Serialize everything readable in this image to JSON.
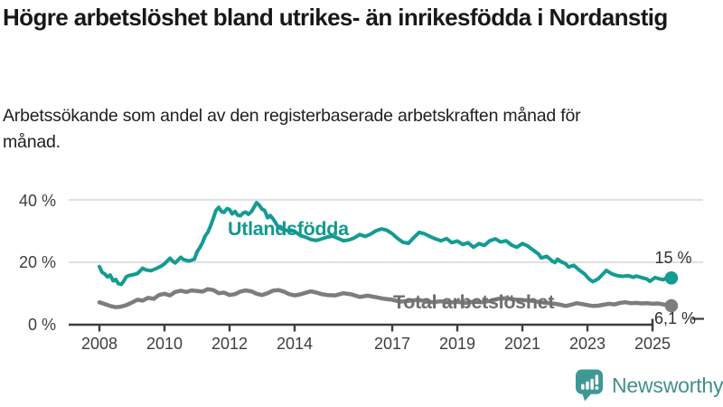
{
  "title": "Högre arbetslöshet bland utrikes- än inrikesfödda i Nordanstig",
  "subtitle": "Arbetssökande som andel av den registerbaserade arbetskraften månad för månad.",
  "chart_data": {
    "type": "line",
    "unit": "%",
    "x_range": [
      2008,
      2025.58
    ],
    "y_range": [
      0,
      40
    ],
    "grid_on": true,
    "grid_color": "#e0e0e0",
    "axis_color": "#3e3e3e",
    "x_ticks": [
      "2008",
      "2010",
      "2012",
      "2014",
      "2017",
      "2019",
      "2021",
      "2023",
      "2025"
    ],
    "y_ticks": [
      {
        "value": 40,
        "label": "40 %"
      },
      {
        "value": 20,
        "label": "20 %"
      },
      {
        "value": 0,
        "label": "0 %"
      }
    ],
    "series": [
      {
        "name": "Utlandsfödda",
        "color": "#149b94",
        "end_label": "15 %",
        "end_value": 15,
        "points": [
          [
            2008,
            18.6
          ],
          [
            2008.08,
            16.8
          ],
          [
            2008.17,
            16.2
          ],
          [
            2008.25,
            15.3
          ],
          [
            2008.33,
            15.9
          ],
          [
            2008.42,
            14.1
          ],
          [
            2008.5,
            14.5
          ],
          [
            2008.58,
            13.2
          ],
          [
            2008.67,
            12.9
          ],
          [
            2008.75,
            14
          ],
          [
            2008.83,
            15.4
          ],
          [
            2008.92,
            15.8
          ],
          [
            2009,
            15.9
          ],
          [
            2009.17,
            16.4
          ],
          [
            2009.33,
            18.1
          ],
          [
            2009.42,
            17.6
          ],
          [
            2009.58,
            17.3
          ],
          [
            2009.75,
            18
          ],
          [
            2009.92,
            18.9
          ],
          [
            2010,
            19.5
          ],
          [
            2010.17,
            21.3
          ],
          [
            2010.25,
            20.4
          ],
          [
            2010.33,
            19.8
          ],
          [
            2010.5,
            21.6
          ],
          [
            2010.58,
            20.9
          ],
          [
            2010.75,
            20.4
          ],
          [
            2010.92,
            21
          ],
          [
            2011,
            23.3
          ],
          [
            2011.08,
            24.6
          ],
          [
            2011.17,
            26.3
          ],
          [
            2011.25,
            28.4
          ],
          [
            2011.33,
            29.6
          ],
          [
            2011.42,
            31.7
          ],
          [
            2011.5,
            34.1
          ],
          [
            2011.58,
            36.6
          ],
          [
            2011.67,
            37.6
          ],
          [
            2011.75,
            36.3
          ],
          [
            2011.83,
            36
          ],
          [
            2011.92,
            37.2
          ],
          [
            2012,
            36.9
          ],
          [
            2012.08,
            35.5
          ],
          [
            2012.17,
            36.3
          ],
          [
            2012.25,
            35.1
          ],
          [
            2012.33,
            34.9
          ],
          [
            2012.42,
            35.8
          ],
          [
            2012.5,
            36.1
          ],
          [
            2012.58,
            35.4
          ],
          [
            2012.67,
            36.2
          ],
          [
            2012.75,
            37.6
          ],
          [
            2012.83,
            39.1
          ],
          [
            2012.92,
            38.2
          ],
          [
            2013,
            37
          ],
          [
            2013.08,
            36.6
          ],
          [
            2013.17,
            34.3
          ],
          [
            2013.25,
            35
          ],
          [
            2013.33,
            34
          ],
          [
            2013.42,
            32.6
          ],
          [
            2013.5,
            31.2
          ],
          [
            2013.67,
            30.4
          ],
          [
            2013.83,
            30.1
          ],
          [
            2014,
            29.9
          ],
          [
            2014.17,
            28.6
          ],
          [
            2014.33,
            28.1
          ],
          [
            2014.5,
            27.3
          ],
          [
            2014.67,
            27
          ],
          [
            2014.83,
            27.5
          ],
          [
            2015,
            28.1
          ],
          [
            2015.17,
            28.4
          ],
          [
            2015.33,
            27.7
          ],
          [
            2015.5,
            26.9
          ],
          [
            2015.67,
            27.2
          ],
          [
            2015.83,
            27.8
          ],
          [
            2016,
            28.9
          ],
          [
            2016.17,
            28.3
          ],
          [
            2016.33,
            29
          ],
          [
            2016.5,
            30.1
          ],
          [
            2016.67,
            30.7
          ],
          [
            2016.83,
            30.3
          ],
          [
            2017,
            29.2
          ],
          [
            2017.17,
            27.6
          ],
          [
            2017.33,
            26.4
          ],
          [
            2017.5,
            26.1
          ],
          [
            2017.67,
            28
          ],
          [
            2017.83,
            29.6
          ],
          [
            2018,
            29.1
          ],
          [
            2018.17,
            28.2
          ],
          [
            2018.33,
            27.5
          ],
          [
            2018.5,
            26.9
          ],
          [
            2018.67,
            27.6
          ],
          [
            2018.83,
            26.3
          ],
          [
            2019,
            26.8
          ],
          [
            2019.17,
            25.7
          ],
          [
            2019.33,
            26.3
          ],
          [
            2019.5,
            24.8
          ],
          [
            2019.67,
            26
          ],
          [
            2019.83,
            25.4
          ],
          [
            2020,
            26.9
          ],
          [
            2020.17,
            27.5
          ],
          [
            2020.33,
            26.5
          ],
          [
            2020.5,
            26.9
          ],
          [
            2020.67,
            25.5
          ],
          [
            2020.83,
            24.8
          ],
          [
            2021,
            26
          ],
          [
            2021.17,
            25.2
          ],
          [
            2021.33,
            23.9
          ],
          [
            2021.5,
            22.6
          ],
          [
            2021.58,
            21.4
          ],
          [
            2021.75,
            21.9
          ],
          [
            2021.92,
            20.4
          ],
          [
            2022,
            19.9
          ],
          [
            2022.08,
            21
          ],
          [
            2022.17,
            20.3
          ],
          [
            2022.33,
            19.5
          ],
          [
            2022.42,
            18.5
          ],
          [
            2022.58,
            19
          ],
          [
            2022.75,
            17.5
          ],
          [
            2022.92,
            16.2
          ],
          [
            2023,
            15.2
          ],
          [
            2023.08,
            14.4
          ],
          [
            2023.17,
            13.8
          ],
          [
            2023.33,
            14.7
          ],
          [
            2023.5,
            16.5
          ],
          [
            2023.58,
            17.4
          ],
          [
            2023.75,
            16.3
          ],
          [
            2023.92,
            15.7
          ],
          [
            2024.08,
            15.5
          ],
          [
            2024.25,
            15.7
          ],
          [
            2024.42,
            15.2
          ],
          [
            2024.5,
            15.6
          ],
          [
            2024.67,
            15.1
          ],
          [
            2024.83,
            14.6
          ],
          [
            2024.92,
            13.9
          ],
          [
            2025.08,
            15.1
          ],
          [
            2025.17,
            14.8
          ],
          [
            2025.33,
            14.4
          ],
          [
            2025.42,
            15
          ],
          [
            2025.58,
            15
          ]
        ]
      },
      {
        "name": "Total arbetslöshet",
        "color": "#7d7d80",
        "end_label": "6,1 %",
        "end_value": 6.1,
        "points": [
          [
            2008,
            7.2
          ],
          [
            2008.17,
            6.6
          ],
          [
            2008.33,
            6
          ],
          [
            2008.5,
            5.6
          ],
          [
            2008.67,
            5.8
          ],
          [
            2008.83,
            6.3
          ],
          [
            2009,
            7.1
          ],
          [
            2009.17,
            8
          ],
          [
            2009.33,
            7.7
          ],
          [
            2009.5,
            8.6
          ],
          [
            2009.67,
            8.3
          ],
          [
            2009.83,
            9.5
          ],
          [
            2010,
            9.9
          ],
          [
            2010.17,
            9.4
          ],
          [
            2010.33,
            10.5
          ],
          [
            2010.5,
            10.9
          ],
          [
            2010.67,
            10.5
          ],
          [
            2010.83,
            11
          ],
          [
            2011,
            10.8
          ],
          [
            2011.17,
            10.6
          ],
          [
            2011.33,
            11.4
          ],
          [
            2011.5,
            11.1
          ],
          [
            2011.67,
            10.1
          ],
          [
            2011.83,
            10.3
          ],
          [
            2012,
            9.5
          ],
          [
            2012.17,
            9.8
          ],
          [
            2012.33,
            10.6
          ],
          [
            2012.5,
            11
          ],
          [
            2012.67,
            10.7
          ],
          [
            2012.83,
            9.9
          ],
          [
            2013,
            9.5
          ],
          [
            2013.17,
            10.1
          ],
          [
            2013.33,
            10.9
          ],
          [
            2013.5,
            11.1
          ],
          [
            2013.67,
            10.6
          ],
          [
            2013.83,
            9.8
          ],
          [
            2014,
            9.4
          ],
          [
            2014.17,
            9.7
          ],
          [
            2014.33,
            10.2
          ],
          [
            2014.5,
            10.7
          ],
          [
            2014.67,
            10.3
          ],
          [
            2014.83,
            9.8
          ],
          [
            2015,
            9.5
          ],
          [
            2015.25,
            9.4
          ],
          [
            2015.5,
            10.1
          ],
          [
            2015.75,
            9.7
          ],
          [
            2016,
            8.9
          ],
          [
            2016.25,
            9.3
          ],
          [
            2016.5,
            8.8
          ],
          [
            2016.75,
            8.3
          ],
          [
            2017,
            8
          ],
          [
            2017.25,
            7.4
          ],
          [
            2017.5,
            7.6
          ],
          [
            2017.75,
            7.9
          ],
          [
            2018,
            7.6
          ],
          [
            2018.25,
            7.2
          ],
          [
            2018.5,
            7.5
          ],
          [
            2018.75,
            7.1
          ],
          [
            2019,
            7.3
          ],
          [
            2019.25,
            7
          ],
          [
            2019.5,
            7.4
          ],
          [
            2019.75,
            7.2
          ],
          [
            2020,
            7.6
          ],
          [
            2020.25,
            8.3
          ],
          [
            2020.5,
            8.5
          ],
          [
            2020.75,
            8.1
          ],
          [
            2021,
            7.9
          ],
          [
            2021.25,
            7.7
          ],
          [
            2021.5,
            7.3
          ],
          [
            2021.75,
            7
          ],
          [
            2022,
            6.7
          ],
          [
            2022.17,
            6.4
          ],
          [
            2022.33,
            6
          ],
          [
            2022.5,
            6.4
          ],
          [
            2022.67,
            6.9
          ],
          [
            2022.83,
            6.6
          ],
          [
            2023,
            6.3
          ],
          [
            2023.17,
            6
          ],
          [
            2023.33,
            6.1
          ],
          [
            2023.5,
            6.4
          ],
          [
            2023.67,
            6.7
          ],
          [
            2023.83,
            6.5
          ],
          [
            2024,
            7
          ],
          [
            2024.17,
            7.2
          ],
          [
            2024.33,
            6.9
          ],
          [
            2024.5,
            7
          ],
          [
            2024.67,
            6.8
          ],
          [
            2024.83,
            6.9
          ],
          [
            2025,
            6.7
          ],
          [
            2025.17,
            6.8
          ],
          [
            2025.33,
            6.5
          ],
          [
            2025.58,
            6.1
          ]
        ]
      }
    ]
  },
  "footer": {
    "brand": "Newsworthy",
    "brand_color": "#42908c",
    "icon_color": "#3e9993"
  }
}
